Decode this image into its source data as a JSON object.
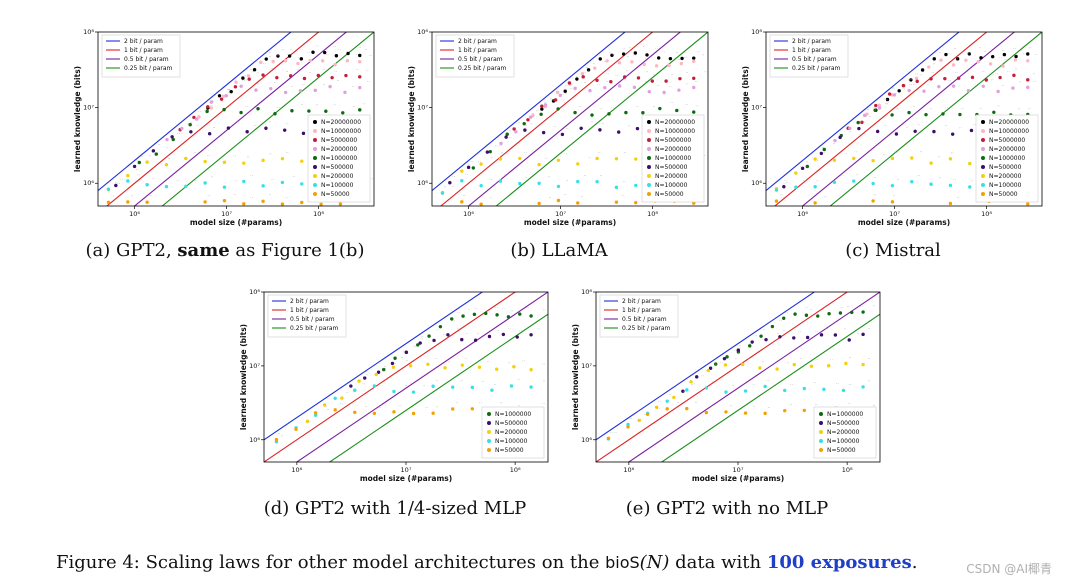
{
  "captions": [
    {
      "prefix": "(a) GPT2, ",
      "bold": "same",
      "suffix": " as Figure 1(b)"
    },
    {
      "prefix": "(b) LLaMA",
      "bold": "",
      "suffix": ""
    },
    {
      "prefix": "(c) Mistral",
      "bold": "",
      "suffix": ""
    },
    {
      "prefix": "(d) GPT2 with 1/4-sized MLP",
      "bold": "",
      "suffix": ""
    },
    {
      "prefix": "(e) GPT2 with no MLP",
      "bold": "",
      "suffix": ""
    }
  ],
  "figure_caption": {
    "lead": "Figure 4: Scaling laws for other model architectures on the ",
    "mono": "bioS",
    "paren": "(N)",
    "mid": " data with ",
    "highlight": "100 exposures",
    "end": "."
  },
  "watermark": "CSDN @AI椰青",
  "colors": {
    "line_2bit": "#1f2fdc",
    "line_1bit": "#dc2222",
    "line_05bit": "#7a1f9f",
    "line_025bit": "#1a8f1a",
    "N20000000": "#000000",
    "N10000000": "#ffb6c1",
    "N5000000": "#c41e3a",
    "N2000000": "#e29fe0",
    "N1000000": "#0f6b0f",
    "N500000": "#3b0f6b",
    "N200000": "#f5d00a",
    "N100000": "#35e0e8",
    "N50000": "#f5a000"
  },
  "chart_data": [
    {
      "type": "scatter",
      "xscale": "log",
      "yscale": "log",
      "xlabel": "model size (#params)",
      "ylabel": "learned knowledge (bits)",
      "xtick_labels": [
        "10⁶",
        "10⁷",
        "10⁸"
      ],
      "ytick_labels": [
        "10⁶",
        "10⁷",
        "10⁸"
      ],
      "xlim": [
        400000,
        400000000
      ],
      "ylim": [
        500000,
        100000000
      ],
      "reference_lines": [
        {
          "name": "2 bit / param",
          "bits_per_param": 2
        },
        {
          "name": "1 bit / param",
          "bits_per_param": 1
        },
        {
          "name": "0.5 bit / param",
          "bits_per_param": 0.5
        },
        {
          "name": "0.25 bit / param",
          "bits_per_param": 0.25
        }
      ],
      "series": [
        {
          "name": "N=20000000",
          "plateau": 50000000
        },
        {
          "name": "N=10000000",
          "plateau": 40000000
        },
        {
          "name": "N=5000000",
          "plateau": 25000000
        },
        {
          "name": "N=2000000",
          "plateau": 18000000
        },
        {
          "name": "N=1000000",
          "plateau": 9000000
        },
        {
          "name": "N=500000",
          "plateau": 5000000
        },
        {
          "name": "N=200000",
          "plateau": 2000000
        },
        {
          "name": "N=100000",
          "plateau": 1000000
        },
        {
          "name": "N=50000",
          "plateau": 550000
        }
      ]
    },
    {
      "type": "scatter",
      "xscale": "log",
      "yscale": "log",
      "xlabel": "model size (#params)",
      "ylabel": "learned knowledge (bits)",
      "xtick_labels": [
        "10⁶",
        "10⁷",
        "10⁸"
      ],
      "ytick_labels": [
        "10⁶",
        "10⁷",
        "10⁸"
      ],
      "xlim": [
        400000,
        400000000
      ],
      "ylim": [
        500000,
        100000000
      ],
      "reference_lines": [
        {
          "name": "2 bit / param",
          "bits_per_param": 2
        },
        {
          "name": "1 bit / param",
          "bits_per_param": 1
        },
        {
          "name": "0.5 bit / param",
          "bits_per_param": 0.5
        },
        {
          "name": "0.25 bit / param",
          "bits_per_param": 0.25
        }
      ],
      "series": [
        {
          "name": "N=20000000",
          "plateau": 50000000
        },
        {
          "name": "N=10000000",
          "plateau": 40000000
        },
        {
          "name": "N=5000000",
          "plateau": 25000000
        },
        {
          "name": "N=2000000",
          "plateau": 18000000
        },
        {
          "name": "N=1000000",
          "plateau": 9000000
        },
        {
          "name": "N=500000",
          "plateau": 5000000
        },
        {
          "name": "N=200000",
          "plateau": 2000000
        },
        {
          "name": "N=100000",
          "plateau": 1000000
        },
        {
          "name": "N=50000",
          "plateau": 550000
        }
      ]
    },
    {
      "type": "scatter",
      "xscale": "log",
      "yscale": "log",
      "xlabel": "model size (#params)",
      "ylabel": "learned knowledge (bits)",
      "xtick_labels": [
        "10⁶",
        "10⁷",
        "10⁸"
      ],
      "ytick_labels": [
        "10⁶",
        "10⁷",
        "10⁸"
      ],
      "xlim": [
        400000,
        400000000
      ],
      "ylim": [
        500000,
        100000000
      ],
      "reference_lines": [
        {
          "name": "2 bit / param",
          "bits_per_param": 2
        },
        {
          "name": "1 bit / param",
          "bits_per_param": 1
        },
        {
          "name": "0.5 bit / param",
          "bits_per_param": 0.5
        },
        {
          "name": "0.25 bit / param",
          "bits_per_param": 0.25
        }
      ],
      "series": [
        {
          "name": "N=20000000",
          "plateau": 50000000
        },
        {
          "name": "N=10000000",
          "plateau": 40000000
        },
        {
          "name": "N=5000000",
          "plateau": 25000000
        },
        {
          "name": "N=2000000",
          "plateau": 18000000
        },
        {
          "name": "N=1000000",
          "plateau": 9000000
        },
        {
          "name": "N=500000",
          "plateau": 5000000
        },
        {
          "name": "N=200000",
          "plateau": 2000000
        },
        {
          "name": "N=100000",
          "plateau": 1000000
        },
        {
          "name": "N=50000",
          "plateau": 550000
        }
      ]
    },
    {
      "type": "scatter",
      "xscale": "log",
      "yscale": "log",
      "xlabel": "model size (#params)",
      "ylabel": "learned knowledge (bits)",
      "xtick_labels": [
        "10⁶",
        "10⁷",
        "10⁸"
      ],
      "ytick_labels": [
        "10⁶",
        "10⁷",
        "10⁸"
      ],
      "xlim": [
        500000,
        200000000
      ],
      "ylim": [
        500000,
        100000000
      ],
      "reference_lines": [
        {
          "name": "2 bit / param",
          "bits_per_param": 2
        },
        {
          "name": "1 bit / param",
          "bits_per_param": 1
        },
        {
          "name": "0.5 bit / param",
          "bits_per_param": 0.5
        },
        {
          "name": "0.25 bit / param",
          "bits_per_param": 0.25
        }
      ],
      "series": [
        {
          "name": "N=1000000",
          "plateau": 50000000
        },
        {
          "name": "N=500000",
          "plateau": 25000000
        },
        {
          "name": "N=200000",
          "plateau": 10000000
        },
        {
          "name": "N=100000",
          "plateau": 5000000
        },
        {
          "name": "N=50000",
          "plateau": 2500000
        }
      ]
    },
    {
      "type": "scatter",
      "xscale": "log",
      "yscale": "log",
      "xlabel": "model size (#params)",
      "ylabel": "learned knowledge (bits)",
      "xtick_labels": [
        "10⁶",
        "10⁷",
        "10⁸"
      ],
      "ytick_labels": [
        "10⁶",
        "10⁷",
        "10⁸"
      ],
      "xlim": [
        500000,
        200000000
      ],
      "ylim": [
        500000,
        100000000
      ],
      "reference_lines": [
        {
          "name": "2 bit / param",
          "bits_per_param": 2
        },
        {
          "name": "1 bit / param",
          "bits_per_param": 1
        },
        {
          "name": "0.5 bit / param",
          "bits_per_param": 0.5
        },
        {
          "name": "0.25 bit / param",
          "bits_per_param": 0.25
        }
      ],
      "series": [
        {
          "name": "N=1000000",
          "plateau": 50000000
        },
        {
          "name": "N=500000",
          "plateau": 25000000
        },
        {
          "name": "N=200000",
          "plateau": 10000000
        },
        {
          "name": "N=100000",
          "plateau": 5000000
        },
        {
          "name": "N=50000",
          "plateau": 2500000
        }
      ]
    }
  ]
}
